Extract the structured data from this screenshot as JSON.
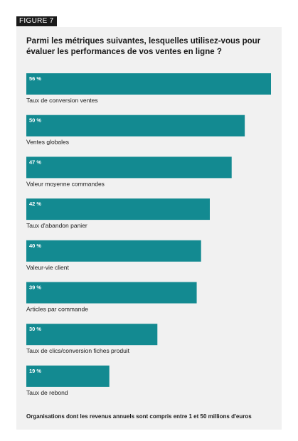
{
  "figure_label": "FIGURE 7",
  "colors": {
    "bar": "#138a91",
    "panel": "#f1f1f1",
    "text": "#1a1a1a",
    "value_text": "#ffffff"
  },
  "chart_data": {
    "type": "bar",
    "orientation": "horizontal",
    "title": "Parmi les métriques suivantes, lesquelles utilisez-vous pour évaluer les performances de vos ventes en ligne ?",
    "categories": [
      "Taux de conversion ventes",
      "Ventes globales",
      "Valeur moyenne commandes",
      "Taux d'abandon panier",
      "Valeur-vie client",
      "Articles par commande",
      "Taux de clics/conversion fiches produit",
      "Taux de rebond"
    ],
    "values": [
      56,
      50,
      47,
      42,
      40,
      39,
      30,
      19
    ],
    "value_labels": [
      "56 %",
      "50 %",
      "47 %",
      "42 %",
      "40 %",
      "39 %",
      "30 %",
      "19 %"
    ],
    "unit": "%",
    "xlim": [
      0,
      56
    ],
    "grid": false,
    "legend": "none",
    "footnote": "Organisations dont les revenus annuels sont compris entre 1 et 50 millions d'euros"
  }
}
